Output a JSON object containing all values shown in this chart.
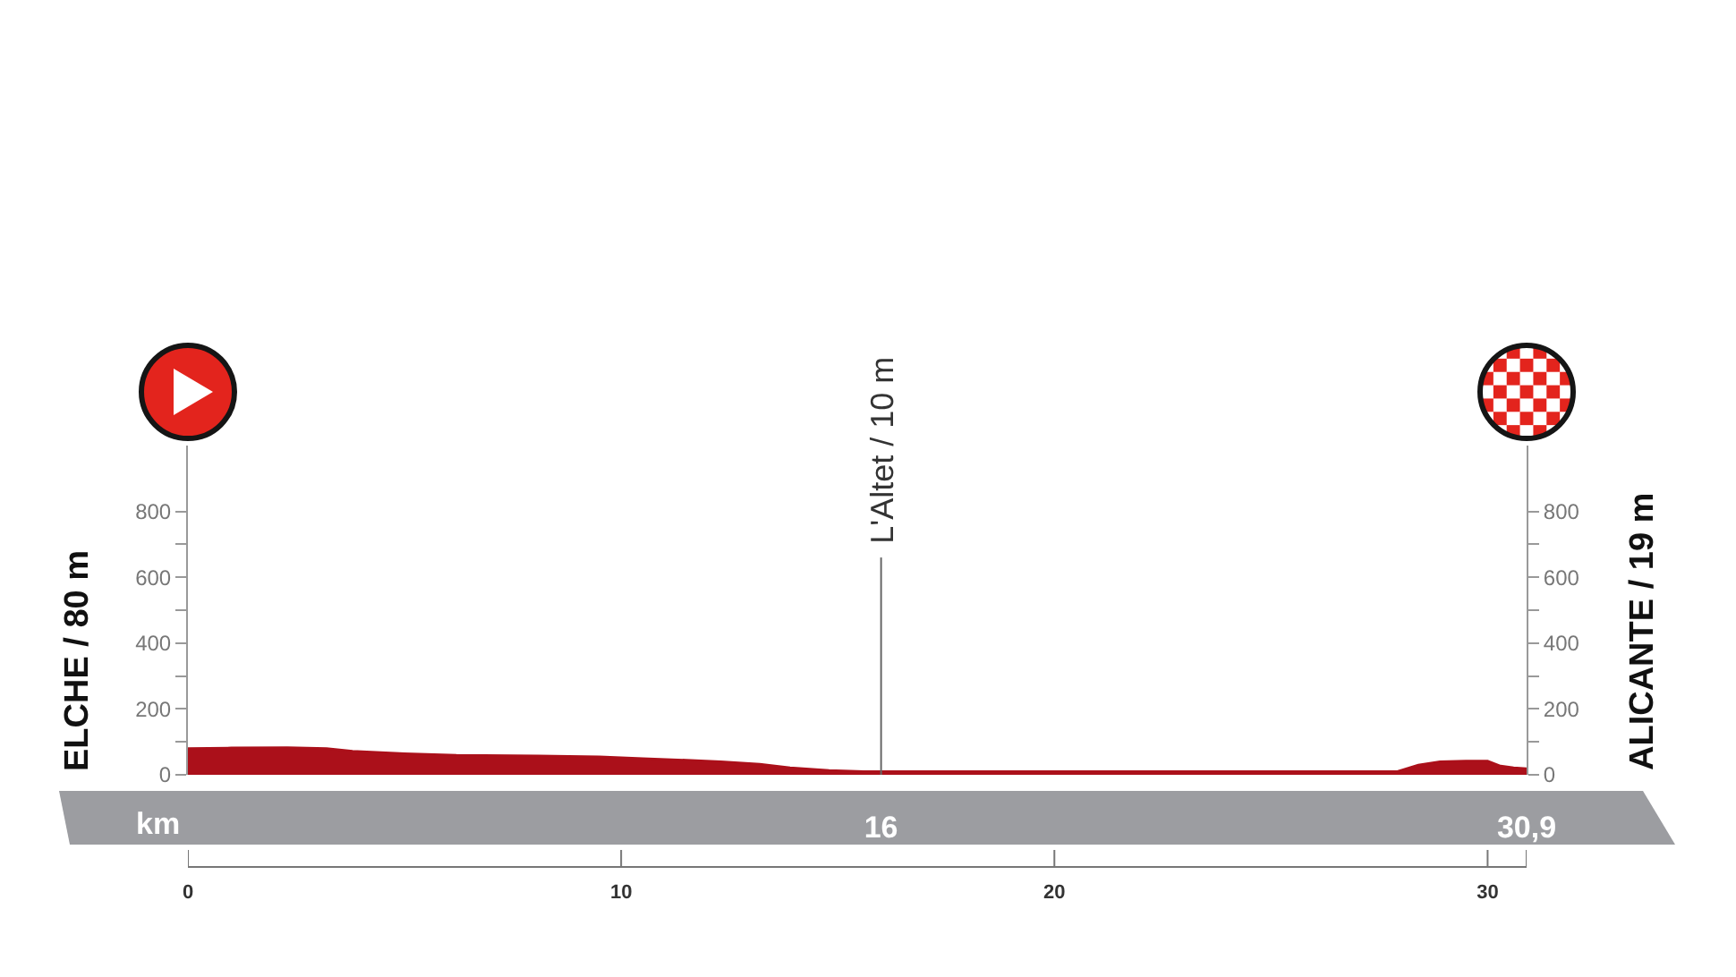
{
  "chart_data": {
    "type": "area",
    "x": [
      0,
      1,
      2.3,
      3.2,
      3.8,
      5,
      6.2,
      8.1,
      9.5,
      10.5,
      11.5,
      12.3,
      13.2,
      13.9,
      14.8,
      15.6,
      16,
      18,
      20,
      22,
      24,
      26,
      27.9,
      28.4,
      28.9,
      29.5,
      30,
      30.3,
      30.6,
      30.9
    ],
    "values": [
      80,
      82,
      83,
      80,
      72,
      65,
      60,
      58,
      55,
      50,
      45,
      40,
      33,
      22,
      14,
      10,
      10,
      10,
      10,
      10,
      10,
      10,
      10,
      30,
      40,
      42,
      42,
      27,
      22,
      19
    ],
    "color": "#ab101a",
    "xlim": [
      0,
      30.9
    ],
    "xticks": [
      0,
      10,
      20,
      30,
      {
        "value": 30.9,
        "label": null
      }
    ],
    "ylim": [
      0,
      1000
    ],
    "yticks": [
      0,
      {
        "value": 100,
        "label": null
      },
      200,
      {
        "value": 300,
        "label": null
      },
      400,
      {
        "value": 500,
        "label": null
      },
      600,
      {
        "value": 700,
        "label": null
      },
      800
    ],
    "y2lim": [
      0,
      1000
    ],
    "y2ticks": [
      0,
      {
        "value": 100,
        "label": null
      },
      200,
      {
        "value": 300,
        "label": null
      },
      400,
      {
        "value": 500,
        "label": null
      },
      600,
      {
        "value": 700,
        "label": null
      },
      800
    ],
    "x2lim": [
      0,
      30.9
    ],
    "x2ticks": [
      16,
      {
        "value": 30.9,
        "label": "30,9"
      }
    ],
    "x2label": "km",
    "ylabel": "ELCHE / 80 m",
    "y2label": "ALICANTE / 19 m",
    "ref_lines": [
      {
        "axis": "x",
        "value": 16,
        "label": "L'Altet / 10 m",
        "color": "#666666"
      }
    ]
  }
}
